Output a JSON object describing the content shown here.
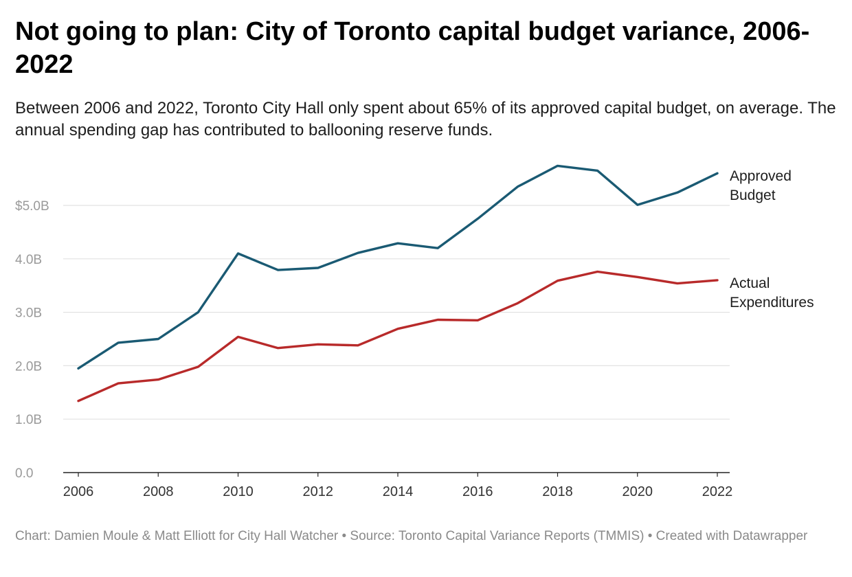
{
  "header": {
    "title": "Not going to plan: City of Toronto capital budget variance, 2006-2022",
    "subtitle": "Between 2006 and 2022, Toronto City Hall only spent about 65% of its approved capital budget, on average. The annual spending gap has contributed to ballooning reserve funds."
  },
  "footer": {
    "credit": "Chart: Damien Moule & Matt Elliott for City Hall Watcher • Source: Toronto Capital Variance Reports (TMMIS) • Created with Datawrapper"
  },
  "colors": {
    "approved": "#1a5a73",
    "actual": "#b82a2a",
    "grid": "#e2e2e2",
    "axis": "#222222",
    "tick_text": "#9a9a9a",
    "x_tick_text": "#333333"
  },
  "chart_data": {
    "type": "line",
    "x": [
      2006,
      2007,
      2008,
      2009,
      2010,
      2011,
      2012,
      2013,
      2014,
      2015,
      2016,
      2017,
      2018,
      2019,
      2020,
      2021,
      2022
    ],
    "series": [
      {
        "name": "Approved Budget",
        "label_lines": [
          "Approved",
          "Budget"
        ],
        "color": "#1a5a73",
        "values": [
          1.95,
          2.43,
          2.5,
          3.0,
          4.1,
          3.79,
          3.83,
          4.11,
          4.29,
          4.2,
          4.75,
          5.35,
          5.74,
          5.65,
          5.01,
          5.24,
          5.6
        ]
      },
      {
        "name": "Actual Expenditures",
        "label_lines": [
          "Actual",
          "Expenditures"
        ],
        "color": "#b82a2a",
        "values": [
          1.34,
          1.67,
          1.74,
          1.98,
          2.54,
          2.33,
          2.4,
          2.38,
          2.69,
          2.86,
          2.85,
          3.17,
          3.59,
          3.76,
          3.66,
          3.54,
          3.6
        ]
      }
    ],
    "y_ticks": [
      0,
      1,
      2,
      3,
      4,
      5
    ],
    "y_tick_labels": [
      "0.0",
      "1.0B",
      "2.0B",
      "3.0B",
      "4.0B",
      "$5.0B"
    ],
    "x_ticks": [
      2006,
      2008,
      2010,
      2012,
      2014,
      2016,
      2018,
      2020,
      2022
    ],
    "x_tick_labels": [
      "2006",
      "2008",
      "2010",
      "2012",
      "2014",
      "2016",
      "2018",
      "2020",
      "2022"
    ],
    "xlim": [
      2006,
      2022
    ],
    "ylim": [
      0,
      5.8
    ],
    "xlabel": "",
    "ylabel": "",
    "grid": true,
    "legend": "direct labels at right"
  }
}
